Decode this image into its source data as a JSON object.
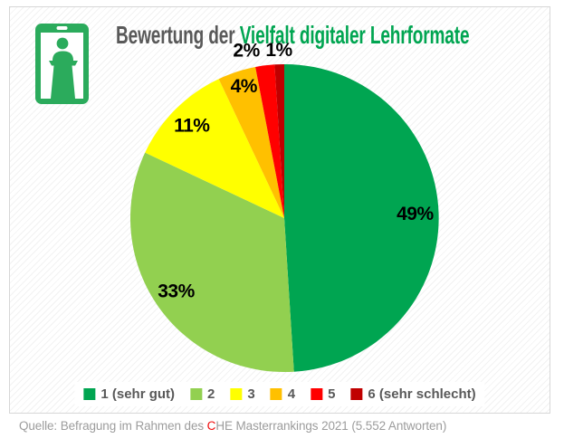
{
  "header": {
    "title_part1": "Bewertung der ",
    "title_part2": "Vielfalt digitaler Lehrformate"
  },
  "chart_data": {
    "type": "pie",
    "title": "Bewertung der Vielfalt digitaler Lehrformate",
    "categories": [
      "1 (sehr gut)",
      "2",
      "3",
      "4",
      "5",
      "6 (sehr schlecht)"
    ],
    "values": [
      49,
      33,
      11,
      4,
      2,
      1
    ],
    "labels": [
      "49%",
      "33%",
      "11%",
      "4%",
      "2%",
      "1%"
    ],
    "unit": "%",
    "colors": [
      "#00A551",
      "#92D050",
      "#FFFF00",
      "#FFC000",
      "#FF0000",
      "#C00000"
    ],
    "start_angle_deg": 0,
    "direction": "clockwise",
    "legend_position": "bottom"
  },
  "footer": {
    "source_prefix": "Quelle: Befragung im Rahmen des ",
    "source_brand_c": "C",
    "source_rest": "HE Masterrankings 2021 (5.552 Antworten)"
  },
  "colors": {
    "title_text": "#595959",
    "title_accent": "#00A551",
    "legend_text": "#595959",
    "label_text": "#000000",
    "source_text": "#9C9C9C",
    "source_accent": "#F00A0A",
    "icon_green": "#2BAB5C",
    "card_border": "#D7D7D7"
  }
}
